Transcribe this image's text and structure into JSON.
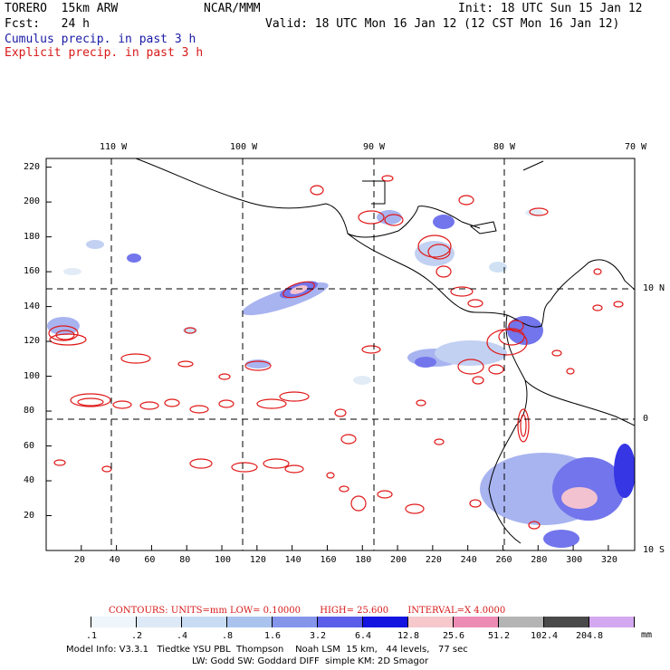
{
  "header": {
    "model": "TORERO  15km ARW",
    "center": "NCAR/MMM",
    "init": "Init: 18 UTC Sun 15 Jan 12",
    "fcst": "Fcst:   24 h",
    "valid": "Valid: 18 UTC Mon 16 Jan 12 (12 CST Mon 16 Jan 12)",
    "field1": "Cumulus precip. in past 3 h",
    "field2": "Explicit precip. in past 3 h"
  },
  "map": {
    "lon_labels": [
      "110 W",
      "100 W",
      "90 W",
      "80 W",
      "70 W"
    ],
    "lat_labels": [
      "10 N",
      "0",
      "10 S"
    ],
    "y_ticks": [
      "220",
      "200",
      "180",
      "160",
      "140",
      "120",
      "100",
      "80",
      "60",
      "40",
      "20"
    ],
    "x_ticks": [
      "20",
      "40",
      "60",
      "80",
      "100",
      "120",
      "140",
      "160",
      "180",
      "200",
      "220",
      "240",
      "260",
      "280",
      "300",
      "320"
    ]
  },
  "contours": {
    "units": "CONTOURS:  UNITS=mm  LOW= 0.10000",
    "high": "HIGH=  25.600",
    "interval": "INTERVAL=X  4.0000"
  },
  "colorbar": {
    "labels": [
      ".1",
      ".2",
      ".4",
      ".8",
      "1.6",
      "3.2",
      "6.4",
      "12.8",
      "25.6",
      "51.2",
      "102.4",
      "204.8"
    ],
    "unit": "mm",
    "colors": [
      "#ffffff",
      "#eef5fb",
      "#dde9f6",
      "#c7dcf2",
      "#a9c3ee",
      "#8495ea",
      "#5a5ee8",
      "#1414e0",
      "#f6c8cc",
      "#ec8cb4",
      "#b4b4b4",
      "#4a4a4a",
      "#d4a8f0"
    ]
  },
  "footer": {
    "line1": "Model Info: V3.3.1   Tiedtke YSU PBL  Thompson    Noah LSM  15 km,   44 levels,   77 sec",
    "line2": "LW: Godd SW: Goddard DIFF  simple KM: 2D Smagor"
  }
}
